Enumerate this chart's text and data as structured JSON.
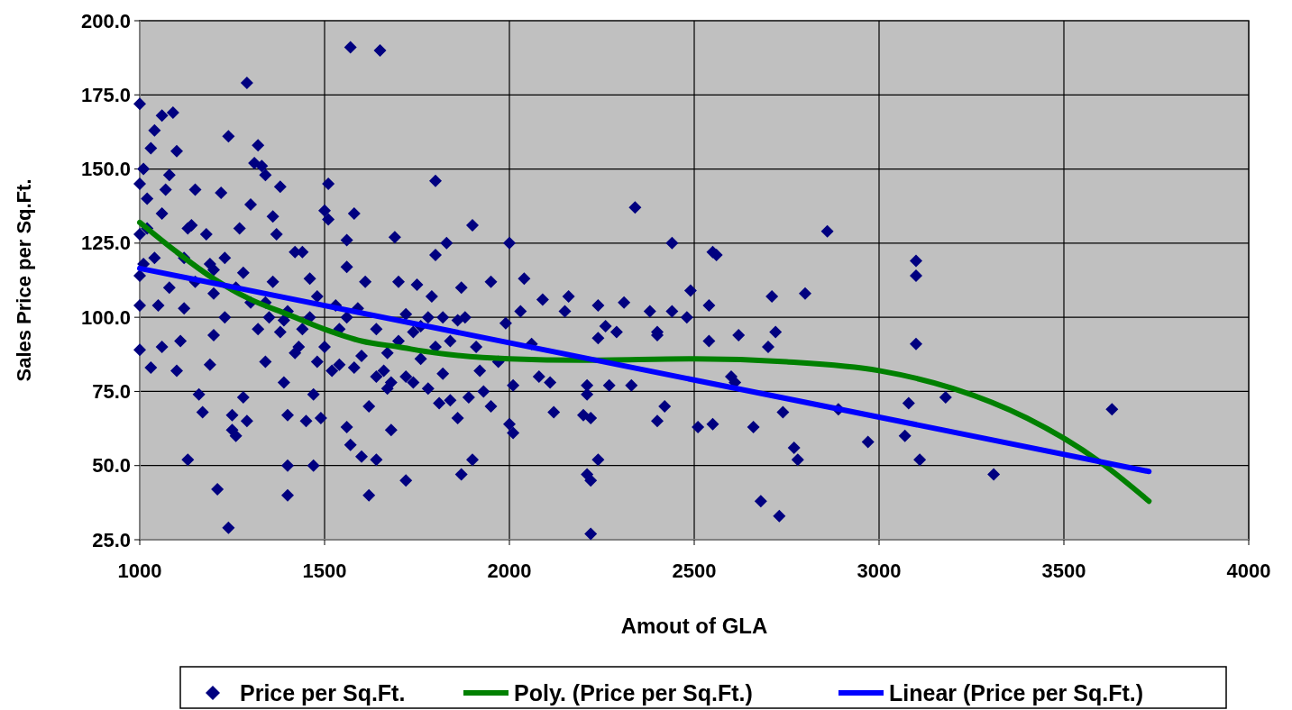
{
  "chart_data": {
    "type": "scatter",
    "xlabel": "Amout of GLA",
    "ylabel": "Sales Price per Sq.Ft.",
    "xlim": [
      1000,
      4000
    ],
    "xticks": [
      1000,
      1500,
      2000,
      2500,
      3000,
      3500,
      4000
    ],
    "ylim": [
      25,
      200
    ],
    "yticks": [
      {
        "value": 25,
        "label": "25.0"
      },
      {
        "value": 50,
        "label": "50.0"
      },
      {
        "value": 75,
        "label": "75.0"
      },
      {
        "value": 100,
        "label": "100.0"
      },
      {
        "value": 125,
        "label": "125.0"
      },
      {
        "value": 150,
        "label": "150.0"
      },
      {
        "value": 175,
        "label": "175.0"
      },
      {
        "value": 200,
        "label": "200.0"
      }
    ],
    "grid": true,
    "legend": "bottom",
    "series": [
      {
        "name": "Price per Sq.Ft.",
        "marker": "diamond",
        "color": "#000080",
        "x": [
          3630,
          3310,
          3180,
          3110,
          3100,
          3100,
          3100,
          3080,
          3070,
          2970,
          2890,
          2860,
          2800,
          2780,
          2770,
          2740,
          2730,
          2720,
          2710,
          2700,
          2680,
          2660,
          2620,
          2610,
          2600,
          2560,
          2550,
          2540,
          2540,
          2550,
          2510,
          2490,
          2480,
          2440,
          2440,
          2420,
          2400,
          2400,
          2400,
          2380,
          2340,
          2330,
          2310,
          2290,
          2270,
          2260,
          2240,
          2240,
          2240,
          2220,
          2220,
          2210,
          2220,
          2210,
          2210,
          2200,
          2160,
          2150,
          2120,
          2110,
          2090,
          2080,
          2060,
          2040,
          2030,
          2010,
          2010,
          2000,
          2000,
          1990,
          1970,
          1950,
          1950,
          1930,
          1920,
          1910,
          1900,
          1900,
          1890,
          1880,
          1870,
          1870,
          1860,
          1860,
          1840,
          1830,
          1820,
          1810,
          1800,
          1800,
          1790,
          1780,
          1760,
          1750,
          1740,
          1720,
          1720,
          1700,
          1690,
          1680,
          1670,
          1670,
          1650,
          1640,
          1640,
          1620,
          1610,
          1600,
          1590,
          1580,
          1570,
          1570,
          1560,
          1560,
          1560,
          1540,
          1530,
          1510,
          1510,
          1500,
          1490,
          1480,
          1470,
          1470,
          1460,
          1450,
          1440,
          1430,
          1420,
          1400,
          1400,
          1400,
          1390,
          1390,
          1380,
          1370,
          1360,
          1350,
          1340,
          1340,
          1330,
          1320,
          1310,
          1300,
          1290,
          1290,
          1280,
          1270,
          1260,
          1250,
          1250,
          1240,
          1240,
          1230,
          1220,
          1210,
          1200,
          1200,
          1190,
          1190,
          1170,
          1160,
          1150,
          1140,
          1130,
          1120,
          1110,
          1100,
          1100,
          1090,
          1080,
          1070,
          1060,
          1060,
          1050,
          1040,
          1030,
          1030,
          1020,
          1010,
          1010,
          1000,
          1000,
          1000,
          1000,
          1000,
          1000,
          1020,
          1040,
          1060,
          1080,
          1120,
          1130,
          1150,
          1180,
          1200,
          1230,
          1260,
          1280,
          1300,
          1320,
          1340,
          1360,
          1380,
          1400,
          1420,
          1440,
          1460,
          1480,
          1500,
          1520,
          1540,
          1560,
          1580,
          1600,
          1620,
          1640,
          1660,
          1680,
          1700,
          1720,
          1740,
          1760,
          1780,
          1800,
          1820,
          1840
        ],
        "values": [
          69,
          47,
          73,
          52,
          91,
          114,
          119,
          71,
          60,
          58,
          69,
          129,
          108,
          52,
          56,
          68,
          33,
          95,
          107,
          90,
          38,
          63,
          94,
          78,
          80,
          121,
          122,
          104,
          92,
          64,
          63,
          109,
          100,
          125,
          102,
          70,
          65,
          94,
          95,
          102,
          137,
          77,
          105,
          95,
          77,
          97,
          104,
          93,
          52,
          66,
          45,
          47,
          27,
          74,
          77,
          67,
          107,
          102,
          68,
          78,
          106,
          80,
          91,
          113,
          102,
          77,
          61,
          64,
          125,
          98,
          85,
          70,
          112,
          75,
          82,
          90,
          131,
          52,
          73,
          100,
          110,
          47,
          99,
          66,
          72,
          125,
          81,
          71,
          146,
          121,
          107,
          76,
          86,
          111,
          95,
          101,
          45,
          112,
          127,
          62,
          76,
          88,
          190,
          80,
          52,
          40,
          112,
          53,
          103,
          135,
          191,
          57,
          117,
          126,
          63,
          84,
          104,
          145,
          133,
          136,
          66,
          107,
          50,
          74,
          113,
          65,
          122,
          90,
          122,
          67,
          50,
          40,
          78,
          99,
          144,
          128,
          134,
          100,
          85,
          148,
          151,
          158,
          152,
          138,
          179,
          65,
          73,
          130,
          60,
          67,
          62,
          161,
          29,
          100,
          142,
          42,
          94,
          116,
          118,
          84,
          68,
          74,
          143,
          131,
          52,
          103,
          92,
          156,
          82,
          169,
          148,
          143,
          168,
          90,
          104,
          163,
          157,
          83,
          140,
          150,
          118,
          172,
          145,
          128,
          104,
          89,
          114,
          130,
          120,
          135,
          110,
          120,
          130,
          112,
          128,
          108,
          120,
          110,
          115,
          105,
          96,
          105,
          112,
          95,
          102,
          88,
          96,
          100,
          85,
          90,
          82,
          96,
          100,
          83,
          87,
          70,
          96,
          82,
          78,
          92,
          80,
          78,
          97,
          100,
          90,
          100,
          92
        ]
      },
      {
        "name": "Poly. (Price per Sq.Ft.)",
        "type": "line",
        "marker": "none",
        "color": "#008000",
        "x": [
          1000,
          1100,
          1200,
          1300,
          1400,
          1500,
          1600,
          1700,
          1800,
          2000,
          2200,
          2500,
          2750,
          3000,
          3200,
          3400,
          3600,
          3730
        ],
        "values": [
          132,
          122,
          113,
          106,
          101,
          96,
          92,
          90,
          88,
          86,
          85.5,
          86,
          85,
          82,
          76,
          66,
          51,
          38
        ]
      },
      {
        "name": "Linear (Price per Sq.Ft.)",
        "type": "line",
        "marker": "none",
        "color": "#0000ff",
        "x": [
          1000,
          3730
        ],
        "values": [
          116.5,
          48
        ]
      }
    ]
  }
}
